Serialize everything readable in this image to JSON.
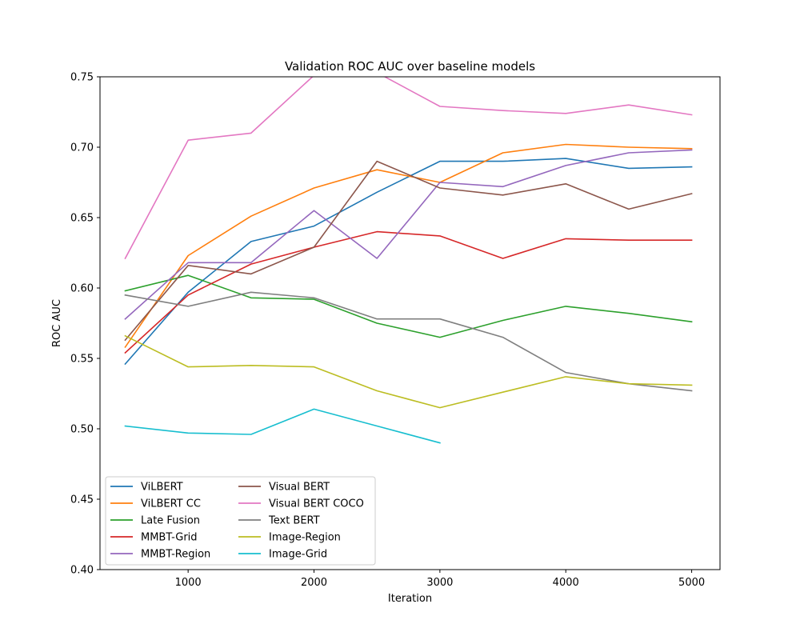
{
  "chart_data": {
    "type": "line",
    "title": "Validation ROC AUC over baseline models",
    "xlabel": "Iteration",
    "ylabel": "ROC AUC",
    "xlim": [
      300,
      5225
    ],
    "ylim": [
      0.4,
      0.75
    ],
    "xticks": [
      1000,
      2000,
      3000,
      4000,
      5000
    ],
    "yticks": [
      0.4,
      0.45,
      0.5,
      0.55,
      0.6,
      0.65,
      0.7,
      0.75
    ],
    "grid": false,
    "legend_position": "lower-left",
    "series": [
      {
        "name": "ViLBERT",
        "color": "#1f77b4",
        "x": [
          500,
          1000,
          1500,
          2000,
          2500,
          3000,
          3500,
          4000,
          4500,
          5000
        ],
        "y": [
          0.546,
          0.597,
          0.633,
          0.644,
          0.668,
          0.69,
          0.69,
          0.692,
          0.685,
          0.686
        ]
      },
      {
        "name": "ViLBERT CC",
        "color": "#ff7f0e",
        "x": [
          500,
          1000,
          1500,
          2000,
          2500,
          3000,
          3500,
          4000,
          4500,
          5000
        ],
        "y": [
          0.558,
          0.623,
          0.651,
          0.671,
          0.684,
          0.675,
          0.696,
          0.702,
          0.7,
          0.699
        ]
      },
      {
        "name": "Late Fusion",
        "color": "#2ca02c",
        "x": [
          500,
          1000,
          1500,
          2000,
          2500,
          3000,
          3500,
          4000,
          4500,
          5000
        ],
        "y": [
          0.598,
          0.609,
          0.593,
          0.592,
          0.575,
          0.565,
          0.577,
          0.587,
          0.582,
          0.576
        ]
      },
      {
        "name": "MMBT-Grid",
        "color": "#d62728",
        "x": [
          500,
          1000,
          1500,
          2000,
          2500,
          3000,
          3500,
          4000,
          4500,
          5000
        ],
        "y": [
          0.554,
          0.595,
          0.617,
          0.629,
          0.64,
          0.637,
          0.621,
          0.635,
          0.634,
          0.634
        ]
      },
      {
        "name": "MMBT-Region",
        "color": "#9467bd",
        "x": [
          500,
          1000,
          1500,
          2000,
          2500,
          3000,
          3500,
          4000,
          4500,
          5000
        ],
        "y": [
          0.578,
          0.618,
          0.618,
          0.655,
          0.621,
          0.675,
          0.672,
          0.687,
          0.696,
          0.698
        ]
      },
      {
        "name": "Visual BERT",
        "color": "#8c564b",
        "x": [
          500,
          1000,
          1500,
          2000,
          2500,
          3000,
          3500,
          4000,
          4500,
          5000
        ],
        "y": [
          0.563,
          0.616,
          0.61,
          0.629,
          0.69,
          0.671,
          0.666,
          0.674,
          0.656,
          0.667
        ]
      },
      {
        "name": "Visual BERT COCO",
        "color": "#e377c2",
        "x": [
          500,
          1000,
          1500,
          2000,
          2500,
          3000,
          3500,
          4000,
          4500,
          5000
        ],
        "y": [
          0.621,
          0.705,
          0.71,
          0.751,
          0.753,
          0.729,
          0.726,
          0.724,
          0.73,
          0.723
        ]
      },
      {
        "name": "Text BERT",
        "color": "#7f7f7f",
        "x": [
          500,
          1000,
          1500,
          2000,
          2500,
          3000,
          3500,
          4000,
          4500,
          5000
        ],
        "y": [
          0.595,
          0.587,
          0.597,
          0.593,
          0.578,
          0.578,
          0.565,
          0.54,
          0.532,
          0.527
        ]
      },
      {
        "name": "Image-Region",
        "color": "#bcbd22",
        "x": [
          500,
          1000,
          1500,
          2000,
          2500,
          3000,
          3500,
          4000,
          4500,
          5000
        ],
        "y": [
          0.566,
          0.544,
          0.545,
          0.544,
          0.527,
          0.515,
          0.526,
          0.537,
          0.532,
          0.531
        ]
      },
      {
        "name": "Image-Grid",
        "color": "#17becf",
        "x": [
          500,
          1000,
          1500,
          2000,
          2500,
          3000
        ],
        "y": [
          0.502,
          0.497,
          0.496,
          0.514,
          0.502,
          0.49
        ]
      }
    ]
  }
}
